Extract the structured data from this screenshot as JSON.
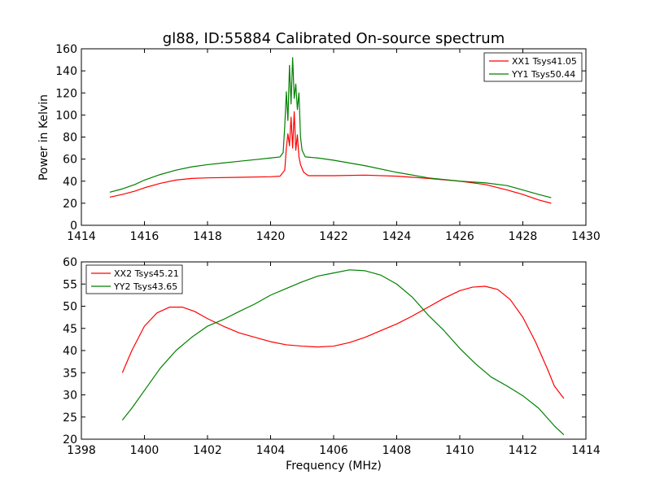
{
  "chart_data": [
    {
      "type": "line",
      "title": "gl88, ID:55884 Calibrated On-source spectrum",
      "xlabel": "",
      "ylabel": "Power in Kelvin",
      "xlim": [
        1414,
        1430
      ],
      "ylim": [
        0,
        160
      ],
      "xticks": [
        1414,
        1416,
        1418,
        1420,
        1422,
        1424,
        1426,
        1428,
        1430
      ],
      "yticks": [
        0,
        20,
        40,
        60,
        80,
        100,
        120,
        140,
        160
      ],
      "xtick_labels": [
        "1414",
        "1416",
        "1418",
        "1420",
        "1422",
        "1424",
        "1426",
        "1428",
        "1430"
      ],
      "ytick_labels": [
        "0",
        "20",
        "40",
        "60",
        "80",
        "100",
        "120",
        "140",
        "160"
      ],
      "grid": false,
      "legend_position": "top-right",
      "series": [
        {
          "name": "XX1 Tsys41.05",
          "color": "#ff0000",
          "points": [
            [
              1414.9,
              25.5
            ],
            [
              1415.3,
              28.0
            ],
            [
              1415.7,
              31.0
            ],
            [
              1416.0,
              34.0
            ],
            [
              1416.5,
              38.0
            ],
            [
              1417.0,
              41.0
            ],
            [
              1417.5,
              42.5
            ],
            [
              1418.0,
              43.0
            ],
            [
              1419.0,
              43.5
            ],
            [
              1420.0,
              44.0
            ],
            [
              1420.3,
              44.5
            ],
            [
              1420.45,
              50.0
            ],
            [
              1420.5,
              70.0
            ],
            [
              1420.55,
              83.0
            ],
            [
              1420.6,
              72.0
            ],
            [
              1420.65,
              98.0
            ],
            [
              1420.7,
              70.0
            ],
            [
              1420.75,
              103.0
            ],
            [
              1420.8,
              68.0
            ],
            [
              1420.85,
              82.0
            ],
            [
              1420.9,
              62.0
            ],
            [
              1420.95,
              55.0
            ],
            [
              1421.05,
              48.0
            ],
            [
              1421.2,
              45.0
            ],
            [
              1422.0,
              45.0
            ],
            [
              1423.0,
              45.5
            ],
            [
              1424.0,
              44.5
            ],
            [
              1425.0,
              42.5
            ],
            [
              1426.0,
              40.0
            ],
            [
              1426.8,
              37.0
            ],
            [
              1427.5,
              32.0
            ],
            [
              1428.0,
              28.0
            ],
            [
              1428.5,
              23.0
            ],
            [
              1428.9,
              20.0
            ]
          ]
        },
        {
          "name": "YY1 Tsys50.44",
          "color": "#008000",
          "points": [
            [
              1414.9,
              30.0
            ],
            [
              1415.3,
              33.0
            ],
            [
              1415.7,
              37.0
            ],
            [
              1416.0,
              41.0
            ],
            [
              1416.5,
              46.0
            ],
            [
              1417.0,
              50.0
            ],
            [
              1417.5,
              53.0
            ],
            [
              1418.0,
              55.0
            ],
            [
              1418.5,
              56.5
            ],
            [
              1419.0,
              58.0
            ],
            [
              1419.5,
              59.5
            ],
            [
              1420.0,
              61.0
            ],
            [
              1420.3,
              62.0
            ],
            [
              1420.4,
              66.0
            ],
            [
              1420.45,
              90.0
            ],
            [
              1420.5,
              121.0
            ],
            [
              1420.55,
              95.0
            ],
            [
              1420.6,
              145.0
            ],
            [
              1420.65,
              110.0
            ],
            [
              1420.7,
              152.0
            ],
            [
              1420.75,
              115.0
            ],
            [
              1420.8,
              128.0
            ],
            [
              1420.85,
              105.0
            ],
            [
              1420.9,
              120.0
            ],
            [
              1420.95,
              80.0
            ],
            [
              1421.0,
              68.0
            ],
            [
              1421.1,
              62.0
            ],
            [
              1421.5,
              61.0
            ],
            [
              1422.0,
              59.0
            ],
            [
              1423.0,
              54.0
            ],
            [
              1424.0,
              48.0
            ],
            [
              1425.0,
              43.0
            ],
            [
              1426.0,
              40.0
            ],
            [
              1426.8,
              38.5
            ],
            [
              1427.5,
              36.0
            ],
            [
              1428.0,
              32.0
            ],
            [
              1428.5,
              28.0
            ],
            [
              1428.9,
              25.0
            ]
          ]
        }
      ]
    },
    {
      "type": "line",
      "title": "",
      "xlabel": "Frequency (MHz)",
      "ylabel": "",
      "xlim": [
        1398,
        1414
      ],
      "ylim": [
        20,
        60
      ],
      "xticks": [
        1398,
        1400,
        1402,
        1404,
        1406,
        1408,
        1410,
        1412,
        1414
      ],
      "yticks": [
        20,
        25,
        30,
        35,
        40,
        45,
        50,
        55,
        60
      ],
      "xtick_labels": [
        "1398",
        "1400",
        "1402",
        "1404",
        "1406",
        "1408",
        "1410",
        "1412",
        "1414"
      ],
      "ytick_labels": [
        "20",
        "25",
        "30",
        "35",
        "40",
        "45",
        "50",
        "55",
        "60"
      ],
      "grid": false,
      "legend_position": "top-left",
      "series": [
        {
          "name": "XX2 Tsys45.21",
          "color": "#ff0000",
          "points": [
            [
              1399.3,
              35.0
            ],
            [
              1399.6,
              40.0
            ],
            [
              1400.0,
              45.5
            ],
            [
              1400.4,
              48.5
            ],
            [
              1400.8,
              49.8
            ],
            [
              1401.2,
              49.8
            ],
            [
              1401.6,
              48.8
            ],
            [
              1402.0,
              47.2
            ],
            [
              1402.5,
              45.5
            ],
            [
              1403.0,
              44.0
            ],
            [
              1403.5,
              43.0
            ],
            [
              1404.0,
              42.0
            ],
            [
              1404.5,
              41.3
            ],
            [
              1405.0,
              41.0
            ],
            [
              1405.5,
              40.8
            ],
            [
              1406.0,
              41.0
            ],
            [
              1406.5,
              41.8
            ],
            [
              1407.0,
              43.0
            ],
            [
              1407.5,
              44.5
            ],
            [
              1408.0,
              46.0
            ],
            [
              1408.5,
              47.8
            ],
            [
              1409.0,
              49.8
            ],
            [
              1409.5,
              51.8
            ],
            [
              1410.0,
              53.5
            ],
            [
              1410.4,
              54.3
            ],
            [
              1410.8,
              54.5
            ],
            [
              1411.2,
              53.8
            ],
            [
              1411.6,
              51.5
            ],
            [
              1412.0,
              47.5
            ],
            [
              1412.4,
              42.0
            ],
            [
              1412.8,
              35.5
            ],
            [
              1413.0,
              32.0
            ],
            [
              1413.3,
              29.2
            ]
          ]
        },
        {
          "name": "YY2 Tsys43.65",
          "color": "#008000",
          "points": [
            [
              1399.3,
              24.3
            ],
            [
              1399.6,
              27.0
            ],
            [
              1400.0,
              31.0
            ],
            [
              1400.5,
              36.0
            ],
            [
              1401.0,
              40.0
            ],
            [
              1401.5,
              43.0
            ],
            [
              1402.0,
              45.5
            ],
            [
              1402.5,
              47.0
            ],
            [
              1403.0,
              48.8
            ],
            [
              1403.5,
              50.5
            ],
            [
              1404.0,
              52.5
            ],
            [
              1404.5,
              54.0
            ],
            [
              1405.0,
              55.5
            ],
            [
              1405.5,
              56.8
            ],
            [
              1406.0,
              57.5
            ],
            [
              1406.5,
              58.2
            ],
            [
              1407.0,
              58.0
            ],
            [
              1407.5,
              57.0
            ],
            [
              1408.0,
              55.0
            ],
            [
              1408.5,
              52.0
            ],
            [
              1409.0,
              48.0
            ],
            [
              1409.5,
              44.5
            ],
            [
              1410.0,
              40.5
            ],
            [
              1410.5,
              37.0
            ],
            [
              1411.0,
              34.0
            ],
            [
              1411.5,
              32.0
            ],
            [
              1412.0,
              29.8
            ],
            [
              1412.5,
              27.0
            ],
            [
              1413.0,
              23.0
            ],
            [
              1413.3,
              21.0
            ]
          ]
        }
      ]
    }
  ]
}
